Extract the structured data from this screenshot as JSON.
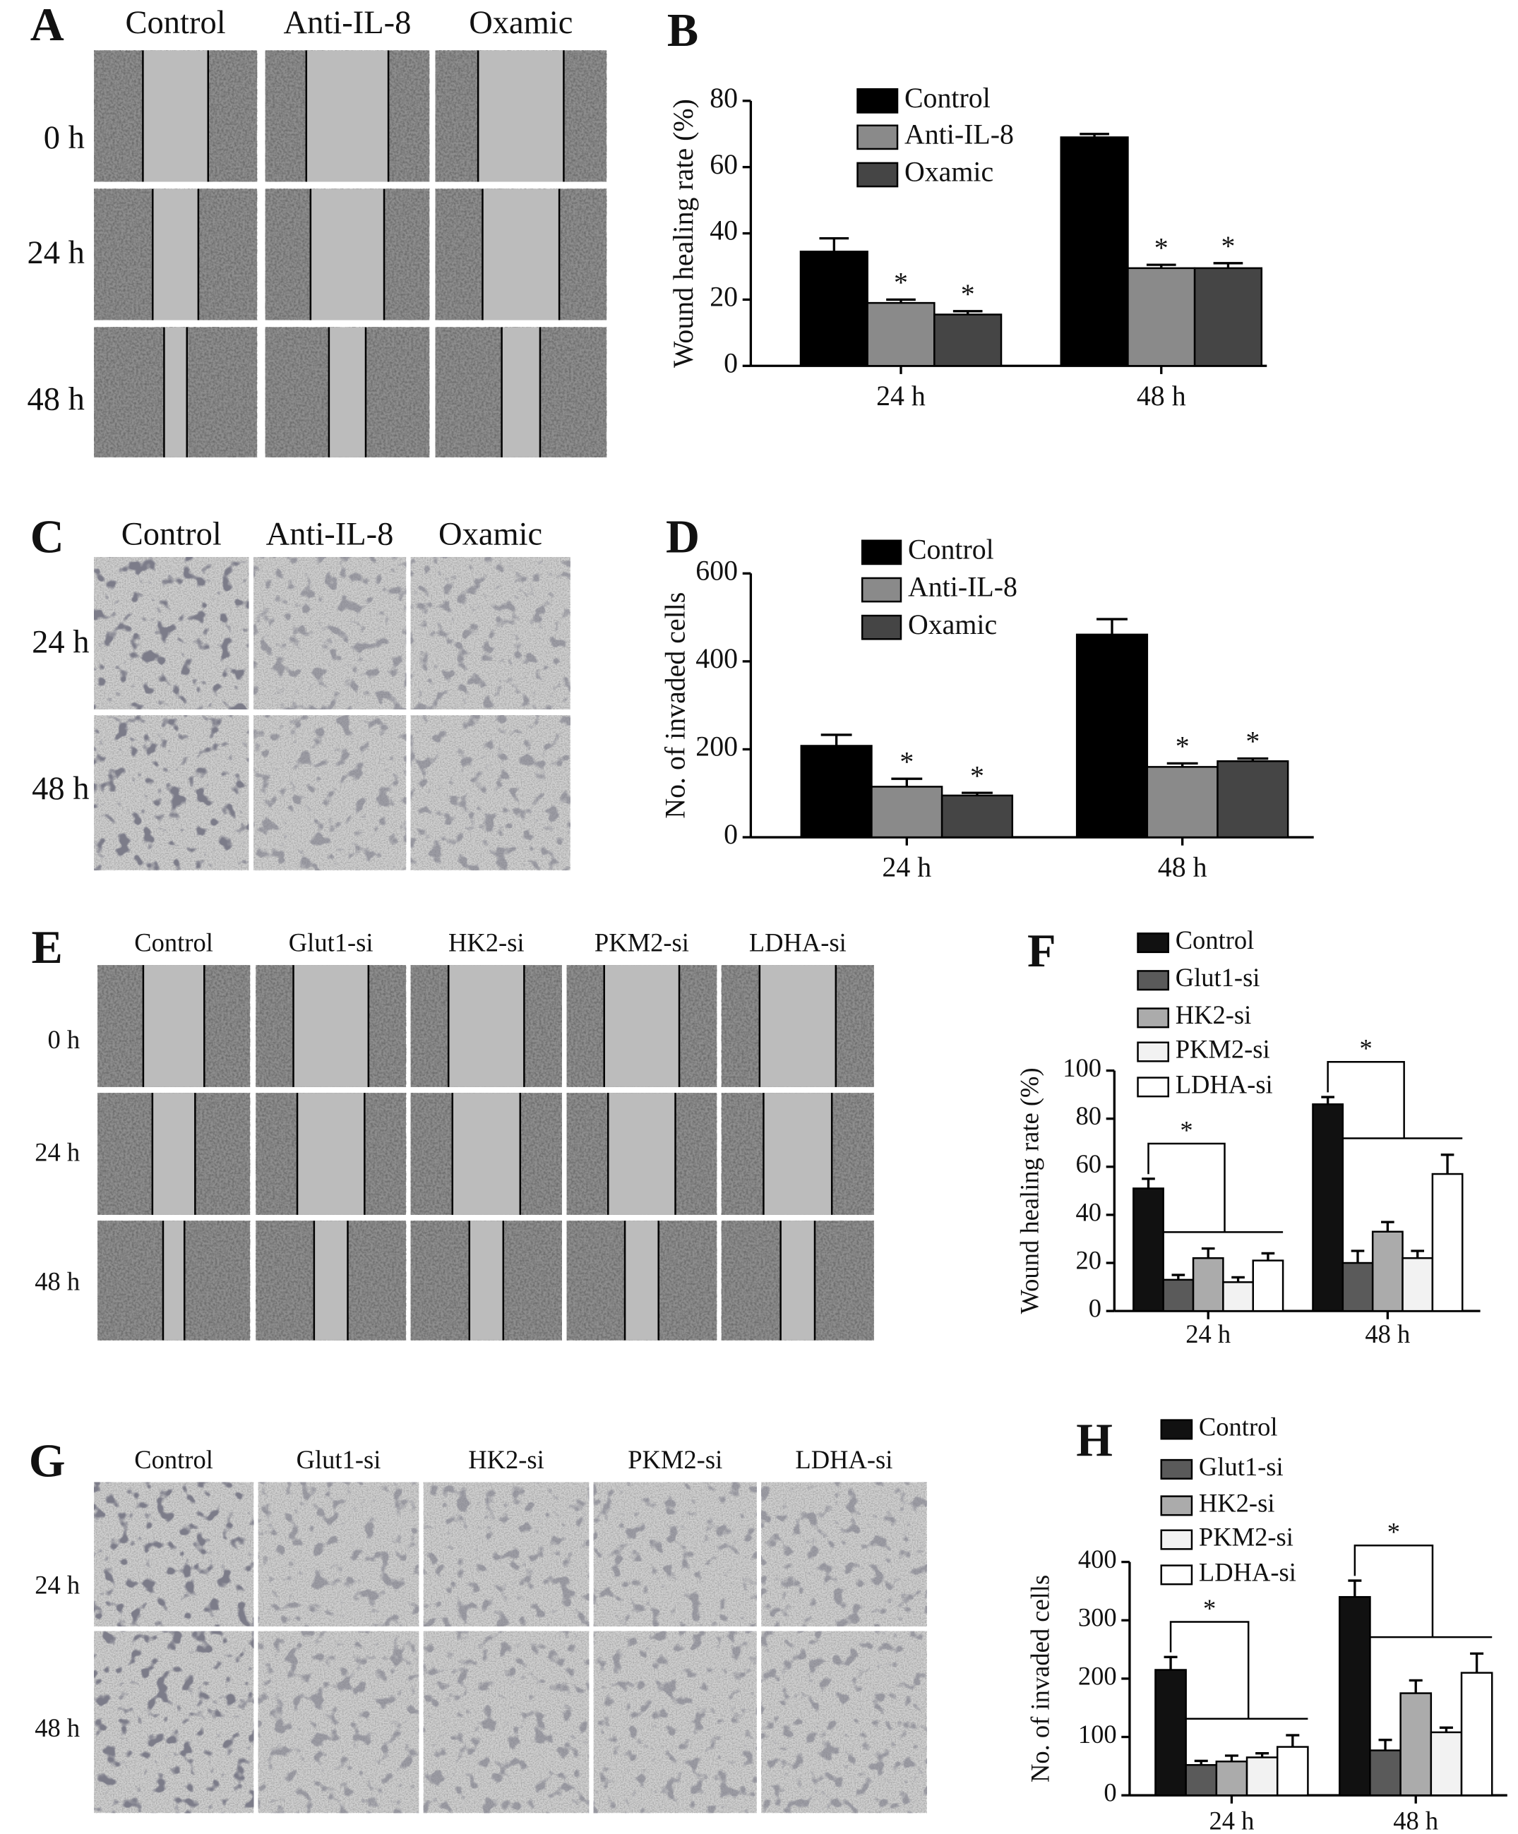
{
  "panels": [
    {
      "label": "A",
      "columns": [
        "Control",
        "Anti-IL-8",
        "Oxamic"
      ],
      "rows": [
        "0 h",
        "24 h",
        "48 h"
      ]
    },
    {
      "label": "C",
      "columns": [
        "Control",
        "Anti-IL-8",
        "Oxamic"
      ],
      "rows": [
        "24 h",
        "48 h"
      ]
    },
    {
      "label": "E",
      "columns": [
        "Control",
        "Glut1-si",
        "HK2-si",
        "PKM2-si",
        "LDHA-si"
      ],
      "rows": [
        "0 h",
        "24 h",
        "48 h"
      ]
    },
    {
      "label": "G",
      "columns": [
        "Control",
        "Glut1-si",
        "HK2-si",
        "PKM2-si",
        "LDHA-si"
      ],
      "rows": [
        "24 h",
        "48 h"
      ]
    }
  ],
  "chart_data": [
    {
      "type": "bar",
      "panel": "B",
      "y_label": "Wound healing rate (%)",
      "categories": [
        "24 h",
        "48 h"
      ],
      "ylim": [
        0,
        80
      ],
      "yticks": [
        0,
        20,
        40,
        60,
        80
      ],
      "series": [
        {
          "name": "Control",
          "color": "#000000",
          "values": [
            34.5,
            69
          ],
          "errors": [
            4,
            1
          ]
        },
        {
          "name": "Anti-IL-8",
          "color": "#8a8a8a",
          "values": [
            19,
            29.5
          ],
          "errors": [
            1,
            1
          ],
          "annotations": [
            "*",
            "*"
          ]
        },
        {
          "name": "Oxamic",
          "color": "#454545",
          "values": [
            15.5,
            29.5
          ],
          "errors": [
            1,
            1.5
          ],
          "annotations": [
            "*",
            "*"
          ]
        }
      ]
    },
    {
      "type": "bar",
      "panel": "D",
      "y_label": "No. of invaded cells",
      "categories": [
        "24 h",
        "48 h"
      ],
      "ylim": [
        0,
        600
      ],
      "yticks": [
        0,
        200,
        400,
        600
      ],
      "series": [
        {
          "name": "Control",
          "color": "#000000",
          "values": [
            208,
            461
          ],
          "errors": [
            25,
            35
          ]
        },
        {
          "name": "Anti-IL-8",
          "color": "#8a8a8a",
          "values": [
            115,
            160
          ],
          "errors": [
            18,
            8
          ],
          "annotations": [
            "*",
            "*"
          ]
        },
        {
          "name": "Oxamic",
          "color": "#454545",
          "values": [
            95,
            173
          ],
          "errors": [
            6,
            6
          ],
          "annotations": [
            "*",
            "*"
          ]
        }
      ]
    },
    {
      "type": "bar",
      "panel": "F",
      "y_label": "Wound healing rate (%)",
      "categories": [
        "24 h",
        "48 h"
      ],
      "ylim": [
        0,
        100
      ],
      "yticks": [
        0,
        20,
        40,
        60,
        80,
        100
      ],
      "annotations": [
        "*",
        "*"
      ],
      "series": [
        {
          "name": "Control",
          "color": "#111111",
          "values": [
            51,
            86
          ],
          "errors": [
            4,
            3
          ]
        },
        {
          "name": "Glut1-si",
          "color": "#5a5a5a",
          "values": [
            13,
            20
          ],
          "errors": [
            2,
            5
          ]
        },
        {
          "name": "HK2-si",
          "color": "#ababab",
          "values": [
            22,
            33
          ],
          "errors": [
            4,
            4
          ]
        },
        {
          "name": "PKM2-si",
          "color": "#f2f2f2",
          "values": [
            12,
            22
          ],
          "errors": [
            2,
            3
          ]
        },
        {
          "name": "LDHA-si",
          "color": "#ffffff",
          "values": [
            21,
            57
          ],
          "errors": [
            3,
            8
          ]
        }
      ]
    },
    {
      "type": "bar",
      "panel": "H",
      "y_label": "No. of invaded cells",
      "categories": [
        "24 h",
        "48 h"
      ],
      "ylim": [
        0,
        400
      ],
      "yticks": [
        0,
        100,
        200,
        300,
        400
      ],
      "annotations": [
        "*",
        "*"
      ],
      "series": [
        {
          "name": "Control",
          "color": "#111111",
          "values": [
            215,
            340
          ],
          "errors": [
            22,
            28
          ]
        },
        {
          "name": "Glut1-si",
          "color": "#5a5a5a",
          "values": [
            52,
            77
          ],
          "errors": [
            7,
            18
          ]
        },
        {
          "name": "HK2-si",
          "color": "#ababab",
          "values": [
            58,
            175
          ],
          "errors": [
            10,
            22
          ]
        },
        {
          "name": "PKM2-si",
          "color": "#f2f2f2",
          "values": [
            65,
            108
          ],
          "errors": [
            7,
            8
          ]
        },
        {
          "name": "LDHA-si",
          "color": "#ffffff",
          "values": [
            83,
            210
          ],
          "errors": [
            20,
            33
          ]
        }
      ]
    }
  ]
}
